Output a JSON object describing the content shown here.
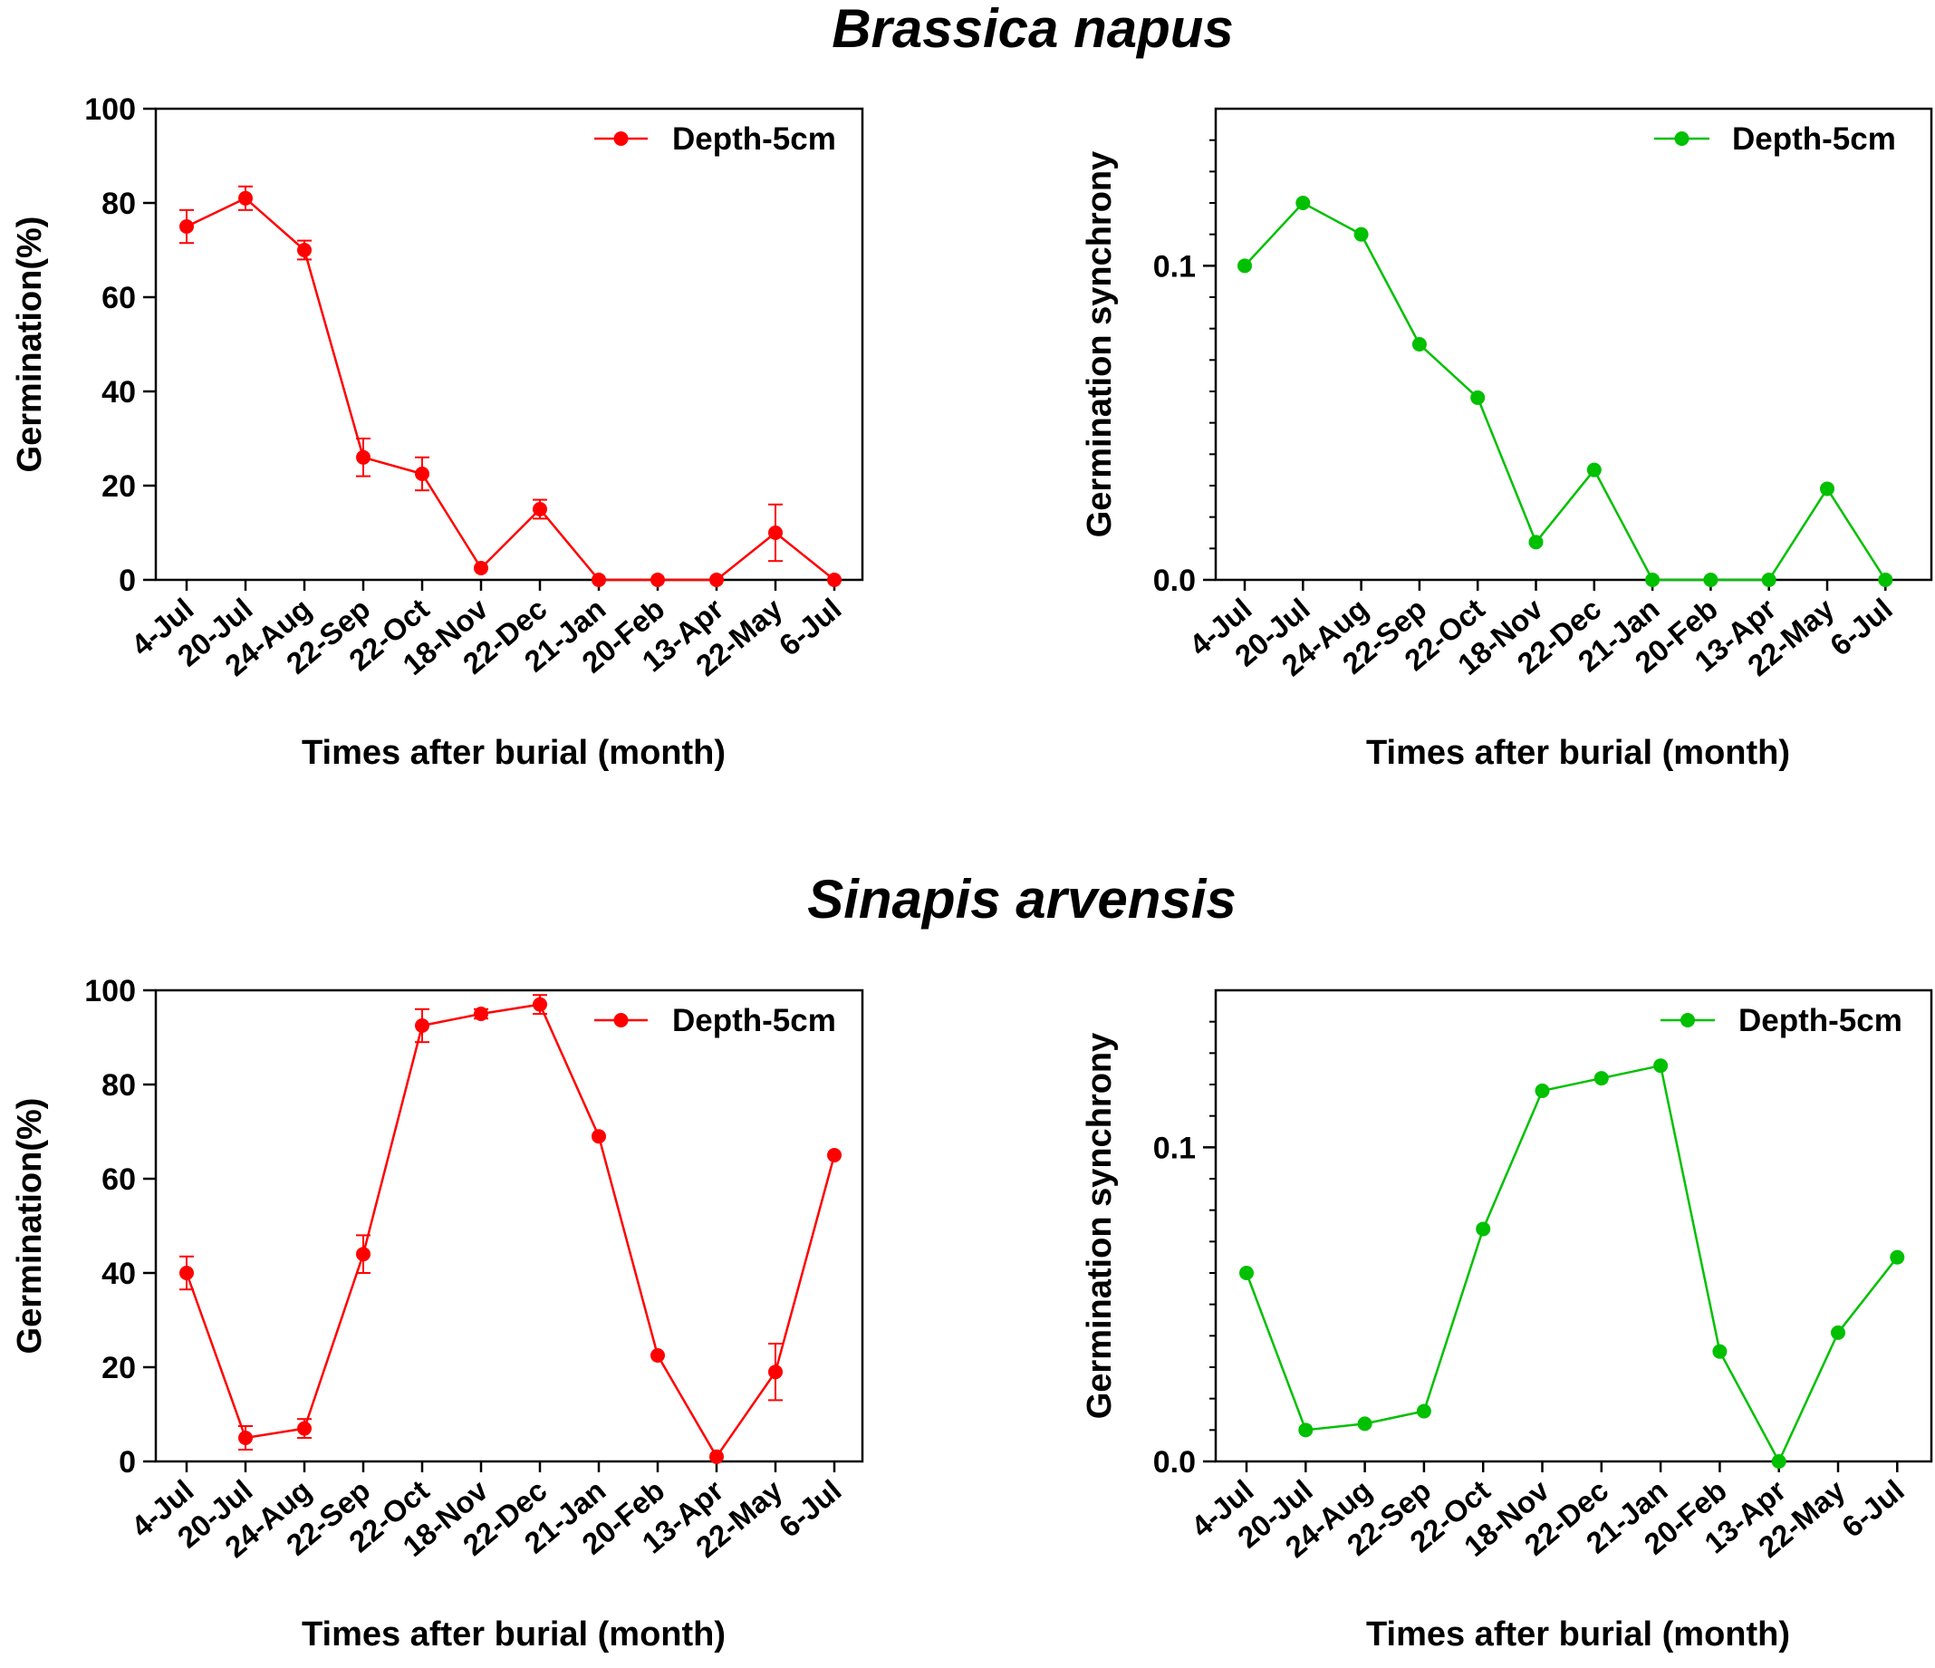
{
  "figure": {
    "title_top": "Brassica napus",
    "title_bottom": "Sinapis arvensis"
  },
  "colors": {
    "red": "#ff0000",
    "green": "#00c000"
  },
  "chart_data": [
    {
      "id": "bn-germination",
      "type": "line",
      "species": "Brassica napus",
      "categories": [
        "4-Jul",
        "20-Jul",
        "24-Aug",
        "22-Sep",
        "22-Oct",
        "18-Nov",
        "22-Dec",
        "21-Jan",
        "20-Feb",
        "13-Apr",
        "22-May",
        "6-Jul"
      ],
      "series": [
        {
          "name": "Depth-5cm",
          "color": "#ff0000",
          "values": [
            75,
            81,
            70,
            26,
            22.5,
            2.5,
            15,
            0,
            0,
            0,
            10,
            0
          ],
          "errors": [
            3.5,
            2.5,
            2,
            4,
            3.5,
            0,
            2,
            0,
            0,
            0,
            6,
            0
          ]
        }
      ],
      "ylim": [
        0,
        100
      ],
      "yticks": [
        0,
        20,
        40,
        60,
        80,
        100
      ],
      "ytick_labels": [
        "0",
        "20",
        "40",
        "60",
        "80",
        "100"
      ],
      "xlabel": "Times after burial (month)",
      "ylabel": "Germination(%)",
      "legend": "top-right"
    },
    {
      "id": "bn-synchrony",
      "type": "line",
      "species": "Brassica napus",
      "categories": [
        "4-Jul",
        "20-Jul",
        "24-Aug",
        "22-Sep",
        "22-Oct",
        "18-Nov",
        "22-Dec",
        "21-Jan",
        "20-Feb",
        "13-Apr",
        "22-May",
        "6-Jul"
      ],
      "series": [
        {
          "name": "Depth-5cm",
          "color": "#00c000",
          "values": [
            0.1,
            0.12,
            0.11,
            0.075,
            0.058,
            0.012,
            0.035,
            0,
            0,
            0,
            0.029,
            0
          ]
        }
      ],
      "ylim": [
        0,
        0.15
      ],
      "yticks": [
        0,
        0.1
      ],
      "ytick_labels": [
        "0.0",
        "0.1"
      ],
      "xlabel": "Times after burial (month)",
      "ylabel": "Germination synchrony",
      "legend": "top-right"
    },
    {
      "id": "sa-germination",
      "type": "line",
      "species": "Sinapis arvensis",
      "categories": [
        "4-Jul",
        "20-Jul",
        "24-Aug",
        "22-Sep",
        "22-Oct",
        "18-Nov",
        "22-Dec",
        "21-Jan",
        "20-Feb",
        "13-Apr",
        "22-May",
        "6-Jul"
      ],
      "series": [
        {
          "name": "Depth-5cm",
          "color": "#ff0000",
          "values": [
            40,
            5,
            7,
            44,
            92.5,
            95,
            97,
            69,
            22.5,
            1,
            19,
            65
          ],
          "errors": [
            3.5,
            2.5,
            2,
            4,
            3.5,
            1,
            2,
            0,
            0,
            0,
            6,
            0
          ]
        }
      ],
      "ylim": [
        0,
        100
      ],
      "yticks": [
        0,
        20,
        40,
        60,
        80,
        100
      ],
      "ytick_labels": [
        "0",
        "20",
        "40",
        "60",
        "80",
        "100"
      ],
      "xlabel": "Times after burial (month)",
      "ylabel": "Germination(%)",
      "legend": "top-right"
    },
    {
      "id": "sa-synchrony",
      "type": "line",
      "species": "Sinapis arvensis",
      "categories": [
        "4-Jul",
        "20-Jul",
        "24-Aug",
        "22-Sep",
        "22-Oct",
        "18-Nov",
        "22-Dec",
        "21-Jan",
        "20-Feb",
        "13-Apr",
        "22-May",
        "6-Jul"
      ],
      "series": [
        {
          "name": "Depth-5cm",
          "color": "#00c000",
          "values": [
            0.06,
            0.01,
            0.012,
            0.016,
            0.074,
            0.118,
            0.122,
            0.126,
            0.035,
            0,
            0.041,
            0.065
          ]
        }
      ],
      "ylim": [
        0,
        0.15
      ],
      "yticks": [
        0,
        0.1
      ],
      "ytick_labels": [
        "0.0",
        "0.1"
      ],
      "xlabel": "Times after burial (month)",
      "ylabel": "Germination synchrony",
      "legend": "top-right"
    }
  ]
}
